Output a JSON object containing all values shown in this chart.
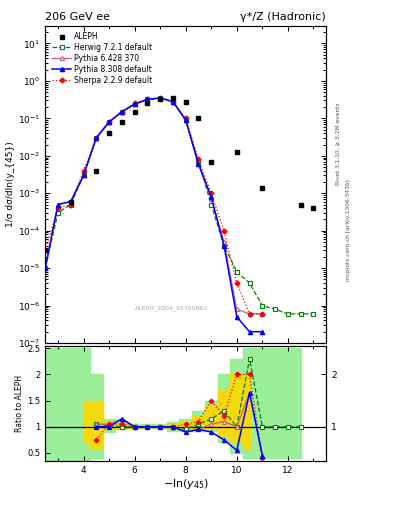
{
  "title_left": "206 GeV ee",
  "title_right": "γ*/Z (Hadronic)",
  "xlabel": "-ln(y_{45})",
  "ylabel_main": "1/σ dσ/dln(y_{45})",
  "ylabel_ratio": "Ratio to ALEPH",
  "watermark": "ALEPH_2004_S5765862",
  "rivet_label": "Rivet 3.1.10, ≥ 3.2M events",
  "arxiv_label": "mcplots.cern.ch [arXiv:1306.3436]",
  "aleph_x": [
    2.5,
    3.5,
    4.5,
    5.0,
    5.5,
    6.0,
    6.5,
    7.0,
    7.5,
    8.0,
    8.5,
    9.0,
    10.0,
    11.0,
    12.5,
    13.0
  ],
  "aleph_y": [
    3e-05,
    0.0006,
    0.004,
    0.04,
    0.08,
    0.15,
    0.25,
    0.32,
    0.35,
    0.28,
    0.1,
    0.007,
    0.013,
    0.0014,
    0.0005,
    0.0004
  ],
  "herwig_x": [
    2.5,
    3.0,
    3.5,
    4.0,
    4.5,
    5.0,
    5.5,
    6.0,
    6.5,
    7.0,
    7.5,
    8.0,
    8.5,
    9.0,
    9.5,
    10.0,
    10.5,
    11.0,
    11.5,
    12.0,
    12.5,
    13.0
  ],
  "herwig_y": [
    1e-05,
    0.0003,
    0.0005,
    0.003,
    0.03,
    0.08,
    0.15,
    0.24,
    0.32,
    0.35,
    0.28,
    0.09,
    0.007,
    0.0005,
    4e-05,
    8e-06,
    4e-06,
    1e-06,
    8e-07,
    6e-07,
    6e-07,
    6e-07
  ],
  "pythia6_x": [
    2.5,
    3.0,
    3.5,
    4.0,
    4.5,
    5.0,
    5.5,
    6.0,
    6.5,
    7.0,
    7.5,
    8.0,
    8.5,
    9.0,
    9.5,
    10.0,
    10.5,
    11.0
  ],
  "pythia6_y": [
    1e-05,
    0.0005,
    0.0006,
    0.003,
    0.03,
    0.08,
    0.15,
    0.24,
    0.32,
    0.35,
    0.28,
    0.09,
    0.006,
    0.0007,
    5e-05,
    8e-07,
    6e-07,
    6e-07
  ],
  "pythia8_x": [
    2.5,
    3.0,
    3.5,
    4.0,
    4.5,
    5.0,
    5.5,
    6.0,
    6.5,
    7.0,
    7.5,
    8.0,
    8.5,
    9.0,
    9.5,
    10.0,
    10.5,
    11.0
  ],
  "pythia8_y": [
    1e-05,
    0.0005,
    0.0006,
    0.003,
    0.03,
    0.08,
    0.15,
    0.24,
    0.32,
    0.35,
    0.28,
    0.09,
    0.006,
    0.0008,
    4e-05,
    5e-07,
    2e-07,
    2e-07
  ],
  "sherpa_x": [
    2.5,
    3.0,
    3.5,
    4.0,
    4.5,
    5.0,
    5.5,
    6.0,
    6.5,
    7.0,
    7.5,
    8.0,
    8.5,
    9.0,
    9.5,
    10.0,
    10.5,
    11.0
  ],
  "sherpa_y": [
    3e-05,
    0.0004,
    0.0005,
    0.004,
    0.03,
    0.08,
    0.15,
    0.25,
    0.32,
    0.35,
    0.28,
    0.1,
    0.008,
    0.001,
    0.0001,
    4e-06,
    6e-07,
    6e-07
  ],
  "ratio_x": [
    4.5,
    5.0,
    5.5,
    6.0,
    6.5,
    7.0,
    7.5,
    8.0,
    8.5,
    9.0,
    9.5,
    10.0,
    10.5,
    11.0,
    11.5,
    12.0,
    12.5
  ],
  "herwig_r": [
    1.05,
    1.02,
    1.0,
    1.0,
    1.0,
    1.0,
    1.0,
    0.95,
    1.05,
    1.15,
    1.3,
    1.0,
    2.3,
    1.0,
    1.0,
    1.0,
    1.0
  ],
  "pythia6_r": [
    1.05,
    1.05,
    1.15,
    1.0,
    1.0,
    1.0,
    1.0,
    0.9,
    0.95,
    1.05,
    1.1,
    1.0,
    1.65,
    0.45,
    null,
    null,
    null
  ],
  "pythia8_r": [
    1.0,
    1.0,
    1.15,
    1.0,
    1.0,
    1.0,
    1.0,
    0.9,
    0.95,
    0.9,
    0.75,
    0.55,
    1.65,
    0.45,
    null,
    null,
    null
  ],
  "sherpa_r": [
    0.75,
    1.05,
    1.05,
    1.0,
    1.0,
    1.0,
    1.0,
    1.05,
    1.1,
    1.5,
    1.2,
    2.0,
    2.0,
    0.4,
    null,
    null,
    null
  ],
  "gb_x": [
    2.5,
    3.0,
    3.5,
    4.0,
    4.5,
    5.0,
    5.5,
    6.0,
    6.5,
    7.0,
    7.5,
    8.0,
    8.5,
    9.0,
    9.5,
    10.0,
    10.5,
    11.0,
    11.5,
    12.0,
    12.5
  ],
  "gb_lo": [
    0.3,
    0.3,
    0.3,
    0.3,
    0.4,
    0.9,
    0.95,
    0.97,
    0.98,
    0.98,
    0.92,
    0.92,
    0.92,
    0.92,
    0.7,
    0.5,
    0.4,
    0.4,
    0.4,
    0.4,
    0.4
  ],
  "gb_hi": [
    2.5,
    2.5,
    2.5,
    2.5,
    2.0,
    1.15,
    1.1,
    1.05,
    1.05,
    1.05,
    1.1,
    1.15,
    1.3,
    1.5,
    2.0,
    2.3,
    2.5,
    2.5,
    2.5,
    2.5,
    2.5
  ],
  "yb_x": [
    4.0,
    4.5,
    5.0,
    5.5,
    6.0,
    6.5,
    7.0,
    7.5,
    8.0,
    8.5,
    9.0,
    9.5,
    10.0,
    10.5
  ],
  "yb_lo": [
    0.7,
    0.6,
    0.95,
    0.98,
    0.98,
    0.99,
    0.99,
    0.95,
    0.95,
    0.95,
    0.95,
    0.8,
    0.7,
    0.6
  ],
  "yb_hi": [
    1.5,
    1.5,
    1.1,
    1.05,
    1.03,
    1.03,
    1.03,
    1.05,
    1.1,
    1.2,
    1.4,
    1.7,
    2.0,
    2.0
  ],
  "ylim_main": [
    1e-07,
    30
  ],
  "ylim_ratio": [
    0.35,
    2.55
  ],
  "xlim": [
    2.5,
    13.5
  ],
  "xticks": [
    4,
    6,
    8,
    10,
    12
  ],
  "yticks_ratio": [
    0.5,
    1.0,
    1.5,
    2.0,
    2.5
  ]
}
